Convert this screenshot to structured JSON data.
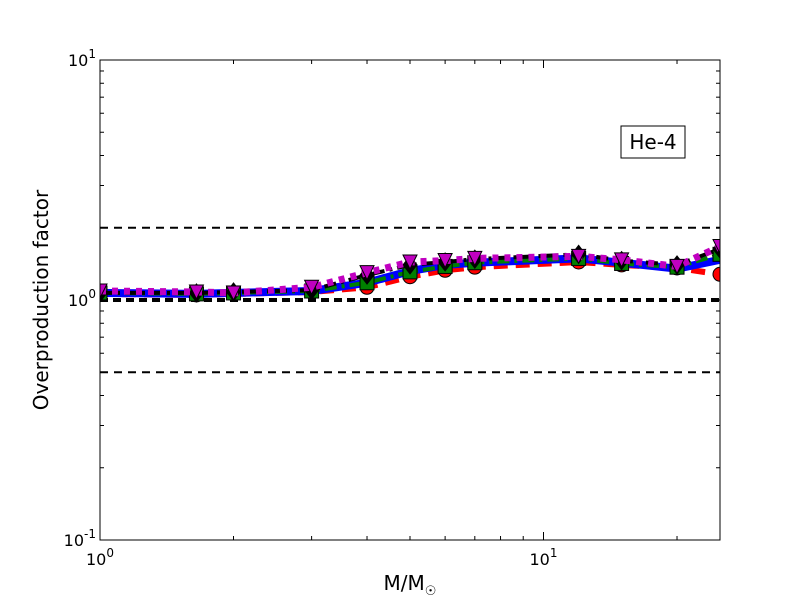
{
  "chart_data": {
    "type": "line",
    "xscale": "log",
    "yscale": "log",
    "xlim": [
      1,
      25
    ],
    "ylim": [
      0.1,
      10
    ],
    "xlabel": "M/M",
    "xlabel_symbol": "☉",
    "ylabel": "Overproduction factor",
    "x_tick_labels": [
      {
        "value": 1,
        "base": "10",
        "exp": "0"
      },
      {
        "value": 10,
        "base": "10",
        "exp": "1"
      }
    ],
    "y_tick_labels": [
      {
        "value": 0.1,
        "base": "10",
        "exp": "-1"
      },
      {
        "value": 1,
        "base": "10",
        "exp": "0"
      },
      {
        "value": 10,
        "base": "10",
        "exp": "1"
      }
    ],
    "annotation": "He-4",
    "reference_lines": [
      {
        "y": 2.0,
        "style": "dashed",
        "weight": "thin"
      },
      {
        "y": 1.0,
        "style": "dashed",
        "weight": "thick"
      },
      {
        "y": 0.5,
        "style": "dashed",
        "weight": "thin"
      }
    ],
    "series": [
      {
        "color": "#ff0000",
        "line": "dashed",
        "marker": "circle",
        "x": [
          1,
          1.65,
          2,
          3,
          4,
          5,
          6,
          7,
          12,
          15,
          20,
          25
        ],
        "y": [
          1.06,
          1.05,
          1.06,
          1.08,
          1.13,
          1.25,
          1.33,
          1.37,
          1.44,
          1.4,
          1.36,
          1.28
        ]
      },
      {
        "color": "#0000ff",
        "line": "solid",
        "marker": "none",
        "x": [
          1,
          1.65,
          2,
          3,
          4,
          5,
          6,
          7,
          12,
          15,
          20,
          25
        ],
        "y": [
          1.07,
          1.06,
          1.07,
          1.09,
          1.18,
          1.32,
          1.4,
          1.43,
          1.49,
          1.43,
          1.35,
          1.47
        ]
      },
      {
        "color": "#008000",
        "line": "dashdot",
        "marker": "square",
        "x": [
          1,
          1.65,
          2,
          3,
          4,
          5,
          6,
          7,
          12,
          15,
          20,
          25
        ],
        "y": [
          1.07,
          1.06,
          1.07,
          1.09,
          1.18,
          1.31,
          1.38,
          1.43,
          1.49,
          1.42,
          1.37,
          1.55
        ]
      },
      {
        "color": "#000000",
        "line": "dashdot",
        "marker": "diamond",
        "x": [
          1,
          1.65,
          2,
          3,
          4,
          5,
          6,
          7,
          12,
          15,
          20,
          25
        ],
        "y": [
          1.07,
          1.07,
          1.08,
          1.1,
          1.27,
          1.4,
          1.44,
          1.48,
          1.55,
          1.46,
          1.4,
          1.63
        ]
      },
      {
        "color": "#c000c0",
        "line": "dotted",
        "marker": "triangle-down",
        "x": [
          1,
          1.65,
          2,
          3,
          4,
          5,
          6,
          7,
          12,
          15,
          20,
          25
        ],
        "y": [
          1.09,
          1.08,
          1.07,
          1.13,
          1.3,
          1.44,
          1.46,
          1.49,
          1.52,
          1.47,
          1.38,
          1.67
        ]
      }
    ]
  }
}
